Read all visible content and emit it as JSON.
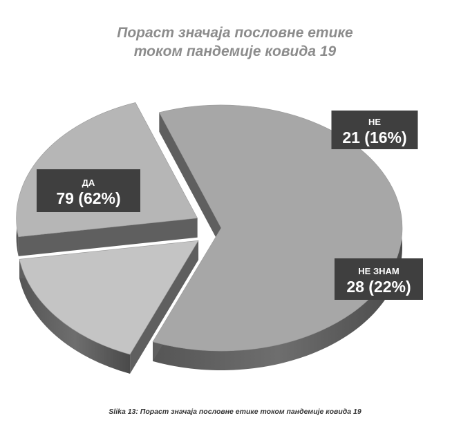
{
  "chart_data": {
    "type": "pie",
    "title": [
      "Пораст значаја пословне етике",
      "током пандемије ковида 19"
    ],
    "caption": "Slika 13: Пораст значаја пословне етике током пандемије ковида 19",
    "slices": [
      {
        "label": "ДА",
        "value": 79,
        "percent": "62%",
        "display": "79 (62%)",
        "color": "#a7a7a7"
      },
      {
        "label": "НЕ",
        "value": 21,
        "percent": "16%",
        "display": "21 (16%)",
        "color": "#c4c4c4"
      },
      {
        "label": "НЕ ЗНАМ",
        "value": 28,
        "percent": "22%",
        "display": "28 (22%)",
        "color": "#b6b6b6"
      }
    ],
    "label_box_color": "#3f3f3f"
  }
}
